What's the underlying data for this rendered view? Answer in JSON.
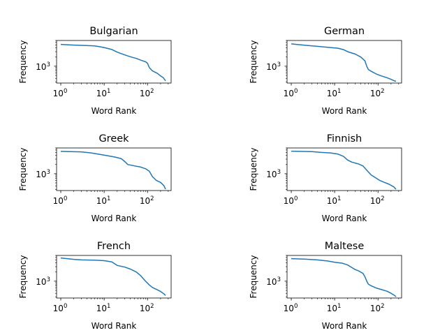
{
  "chart_data": [
    {
      "type": "line",
      "title": "Bulgarian",
      "xlabel": "Word Rank",
      "ylabel": "Frequency",
      "xscale": "log",
      "yscale": "log",
      "xlim": [
        0.8,
        350
      ],
      "ylim": [
        280,
        7000
      ],
      "x_ticks": [
        {
          "v": 1,
          "base": "10",
          "exp": "0"
        },
        {
          "v": 10,
          "base": "10",
          "exp": "1"
        },
        {
          "v": 100,
          "base": "10",
          "exp": "2"
        }
      ],
      "y_ticks": [
        {
          "v": 1000,
          "base": "10",
          "exp": "3"
        }
      ],
      "color": "#1f77b4",
      "series": [
        {
          "x": [
            1,
            2,
            4,
            6,
            7,
            10,
            15,
            20,
            30,
            40,
            55,
            70,
            90,
            100,
            110,
            130,
            170,
            200,
            230,
            250,
            260
          ],
          "y": [
            5200,
            4950,
            4750,
            4650,
            4500,
            4100,
            3550,
            2900,
            2350,
            2050,
            1800,
            1580,
            1400,
            1250,
            900,
            700,
            580,
            480,
            420,
            360,
            330
          ]
        }
      ]
    },
    {
      "type": "line",
      "title": "German",
      "xlabel": "Word Rank",
      "ylabel": "Frequency",
      "xscale": "log",
      "yscale": "log",
      "xlim": [
        0.8,
        350
      ],
      "ylim": [
        280,
        7000
      ],
      "x_ticks": [
        {
          "v": 1,
          "base": "10",
          "exp": "0"
        },
        {
          "v": 10,
          "base": "10",
          "exp": "1"
        },
        {
          "v": 100,
          "base": "10",
          "exp": "2"
        }
      ],
      "y_ticks": [
        {
          "v": 1000,
          "base": "10",
          "exp": "3"
        }
      ],
      "color": "#1f77b4",
      "series": [
        {
          "x": [
            1,
            2,
            4,
            8,
            12,
            16,
            20,
            30,
            40,
            50,
            55,
            60,
            70,
            90,
            120,
            160,
            200,
            240,
            260
          ],
          "y": [
            5400,
            4900,
            4500,
            4100,
            3900,
            3500,
            3000,
            2500,
            2000,
            1500,
            1000,
            780,
            680,
            560,
            480,
            420,
            370,
            330,
            320
          ]
        }
      ]
    },
    {
      "type": "line",
      "title": "Greek",
      "xlabel": "Word Rank",
      "ylabel": "Frequency",
      "xscale": "log",
      "yscale": "log",
      "xlim": [
        0.8,
        350
      ],
      "ylim": [
        280,
        7000
      ],
      "x_ticks": [
        {
          "v": 1,
          "base": "10",
          "exp": "0"
        },
        {
          "v": 10,
          "base": "10",
          "exp": "1"
        },
        {
          "v": 100,
          "base": "10",
          "exp": "2"
        }
      ],
      "y_ticks": [
        {
          "v": 1000,
          "base": "10",
          "exp": "3"
        }
      ],
      "color": "#1f77b4",
      "series": [
        {
          "x": [
            1,
            3,
            5,
            8,
            12,
            18,
            25,
            30,
            35,
            50,
            70,
            90,
            110,
            130,
            160,
            200,
            240,
            260
          ],
          "y": [
            5400,
            5200,
            4800,
            4300,
            3900,
            3500,
            3100,
            2500,
            2000,
            1800,
            1650,
            1450,
            1200,
            800,
            600,
            520,
            400,
            310
          ]
        }
      ]
    },
    {
      "type": "line",
      "title": "Finnish",
      "xlabel": "Word Rank",
      "ylabel": "Frequency",
      "xscale": "log",
      "yscale": "log",
      "xlim": [
        0.8,
        350
      ],
      "ylim": [
        280,
        7000
      ],
      "x_ticks": [
        {
          "v": 1,
          "base": "10",
          "exp": "0"
        },
        {
          "v": 10,
          "base": "10",
          "exp": "1"
        },
        {
          "v": 100,
          "base": "10",
          "exp": "2"
        }
      ],
      "y_ticks": [
        {
          "v": 1000,
          "base": "10",
          "exp": "3"
        }
      ],
      "color": "#1f77b4",
      "series": [
        {
          "x": [
            1,
            3,
            5,
            8,
            12,
            16,
            20,
            25,
            35,
            45,
            55,
            70,
            90,
            110,
            140,
            180,
            230,
            260
          ],
          "y": [
            5500,
            5300,
            5000,
            4800,
            4400,
            3700,
            2800,
            2400,
            2100,
            1800,
            1300,
            900,
            720,
            600,
            520,
            450,
            370,
            310
          ]
        }
      ]
    },
    {
      "type": "line",
      "title": "French",
      "xlabel": "Word Rank",
      "ylabel": "Frequency",
      "xscale": "log",
      "yscale": "log",
      "xlim": [
        0.8,
        350
      ],
      "ylim": [
        280,
        7000
      ],
      "x_ticks": [
        {
          "v": 1,
          "base": "10",
          "exp": "0"
        },
        {
          "v": 10,
          "base": "10",
          "exp": "1"
        },
        {
          "v": 100,
          "base": "10",
          "exp": "2"
        }
      ],
      "y_ticks": [
        {
          "v": 1000,
          "base": "10",
          "exp": "3"
        }
      ],
      "color": "#1f77b4",
      "series": [
        {
          "x": [
            1,
            2,
            3,
            6,
            10,
            15,
            20,
            30,
            40,
            55,
            70,
            90,
            110,
            130,
            160,
            200,
            240,
            260
          ],
          "y": [
            5800,
            5200,
            5000,
            4900,
            4700,
            4300,
            3300,
            2900,
            2500,
            2000,
            1500,
            1000,
            750,
            620,
            540,
            460,
            380,
            340
          ]
        }
      ]
    },
    {
      "type": "line",
      "title": "Maltese",
      "xlabel": "Word Rank",
      "ylabel": "Frequency",
      "xscale": "log",
      "yscale": "log",
      "xlim": [
        0.8,
        350
      ],
      "ylim": [
        280,
        7000
      ],
      "x_ticks": [
        {
          "v": 1,
          "base": "10",
          "exp": "0"
        },
        {
          "v": 10,
          "base": "10",
          "exp": "1"
        },
        {
          "v": 100,
          "base": "10",
          "exp": "2"
        }
      ],
      "y_ticks": [
        {
          "v": 1000,
          "base": "10",
          "exp": "3"
        }
      ],
      "color": "#1f77b4",
      "series": [
        {
          "x": [
            1,
            2,
            4,
            7,
            10,
            15,
            20,
            25,
            30,
            35,
            45,
            50,
            55,
            60,
            70,
            90,
            120,
            160,
            200,
            240,
            260
          ],
          "y": [
            5500,
            5300,
            5000,
            4600,
            4200,
            3900,
            3400,
            2800,
            2400,
            2200,
            1800,
            1400,
            1000,
            800,
            700,
            600,
            530,
            470,
            400,
            340,
            310
          ]
        }
      ]
    }
  ]
}
